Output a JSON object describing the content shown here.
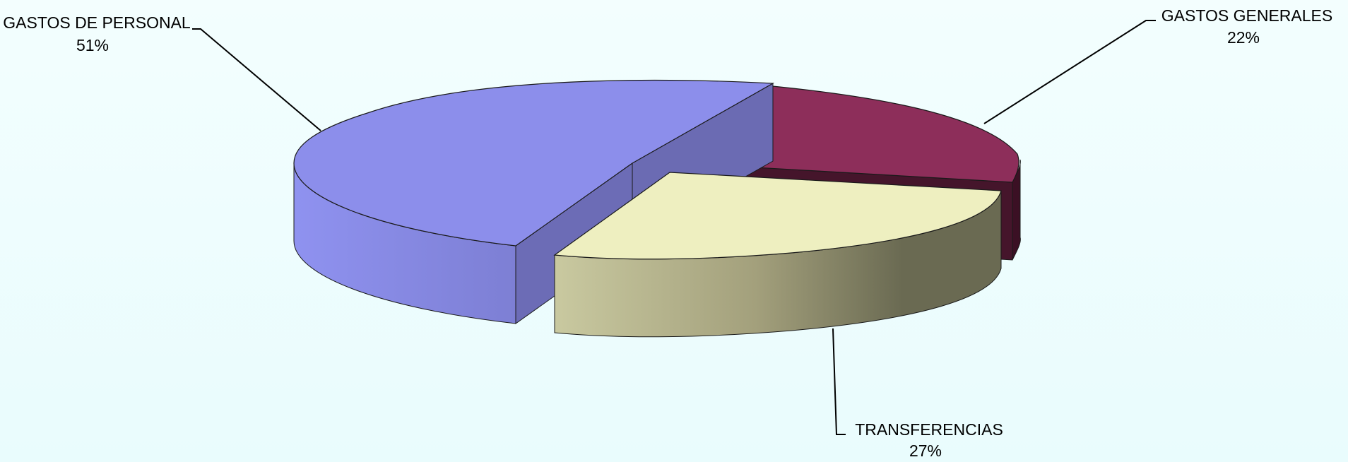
{
  "chart_data": {
    "type": "pie",
    "style": "3d-exploded",
    "title": "",
    "legend": "none",
    "slices": [
      {
        "label": "GASTOS DE PERSONAL",
        "value": 51,
        "value_label": "51%",
        "color": "#8c8eeb"
      },
      {
        "label": "GASTOS GENERALES",
        "value": 22,
        "value_label": "22%",
        "color": "#8d2e5a"
      },
      {
        "label": "TRANSFERENCIAS",
        "value": 27,
        "value_label": "27%",
        "color": "#eeefc0"
      }
    ]
  }
}
